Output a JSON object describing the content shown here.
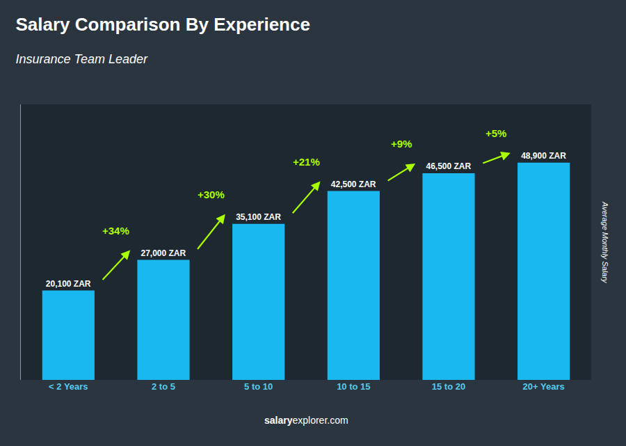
{
  "chart_data": {
    "type": "bar",
    "title": "Salary Comparison By Experience",
    "subtitle": "Insurance Team Leader",
    "ylabel": "Average Monthly Salary",
    "footer": [
      "salary",
      "explorer.com"
    ],
    "categories": [
      "< 2 Years",
      "2 to 5",
      "5 to 10",
      "10 to 15",
      "15 to 20",
      "20+ Years"
    ],
    "values": [
      20100,
      27000,
      35100,
      42500,
      46500,
      48900
    ],
    "value_labels": [
      "20,100 ZAR",
      "27,000 ZAR",
      "35,100 ZAR",
      "42,500 ZAR",
      "46,500 ZAR",
      "48,900 ZAR"
    ],
    "data_labels": true,
    "color": "#1ab8f0",
    "annotations": [
      {
        "text": "+34%",
        "color": "#aaff00"
      },
      {
        "text": "+30%",
        "color": "#aaff00"
      },
      {
        "text": "+21%",
        "color": "#aaff00"
      },
      {
        "text": "+9%",
        "color": "#aaff00"
      },
      {
        "text": "+5%",
        "color": "#aaff00"
      }
    ],
    "ylim": [
      0,
      62000
    ],
    "tick_labels": "x",
    "grid": false
  }
}
